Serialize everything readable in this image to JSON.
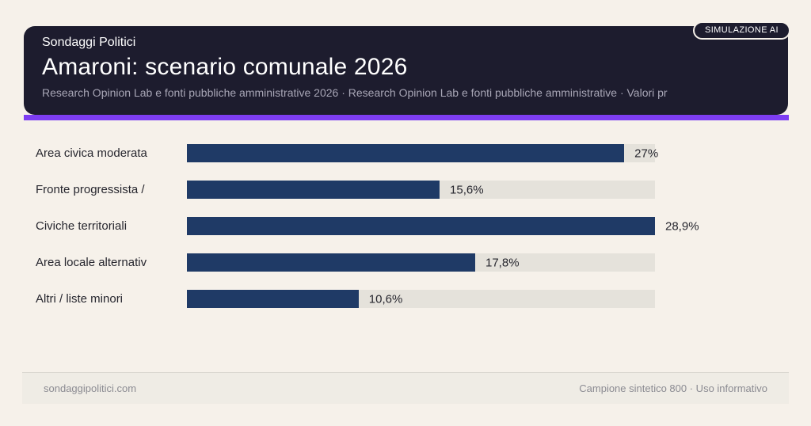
{
  "badge": {
    "label": "SIMULAZIONE AI"
  },
  "header": {
    "kicker": "Sondaggi Politici",
    "title": "Amaroni: scenario comunale 2026",
    "subtitle": "Research Opinion Lab e fonti pubbliche amministrative 2026 · Research Opinion Lab e fonti pubbliche amministrative · Valori pr"
  },
  "chart_data": {
    "type": "bar",
    "orientation": "horizontal",
    "title": "Amaroni: scenario comunale 2026",
    "categories": [
      "Area civica moderata",
      "Fronte progressista /",
      "Civiche territoriali",
      "Area locale alternativ",
      "Altri / liste minori"
    ],
    "values": [
      27,
      15.6,
      28.9,
      17.8,
      10.6
    ],
    "value_labels": [
      "27%",
      "15,6%",
      "28,9%",
      "17,8%",
      "10,6%"
    ],
    "xlim": [
      0,
      28.9
    ],
    "grid": false,
    "legend": false,
    "bar_color": "#1f3a66",
    "track_color": "#e5e2db"
  },
  "footer": {
    "left": "sondaggipolitici.com",
    "right": "Campione sintetico 800 · Uso informativo"
  },
  "colors": {
    "page_bg": "#f6f1ea",
    "card_bg": "#1d1c2e",
    "accent": "#7d3df2",
    "bar": "#1f3a66",
    "track": "#e5e2db",
    "footer_bg": "#efece5"
  }
}
